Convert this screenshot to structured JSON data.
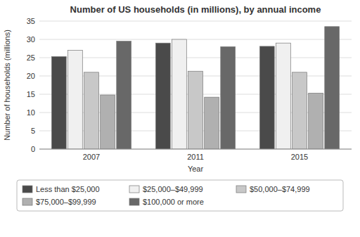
{
  "chart_data": {
    "type": "bar",
    "title": "Number of US households (in millions), by annual income",
    "xlabel": "Year",
    "ylabel": "Number of households (millions)",
    "categories": [
      "2007",
      "2011",
      "2015"
    ],
    "series": [
      {
        "name": "Less than $25,000",
        "color": "#4a4a4a",
        "values": [
          25.3,
          29.0,
          28.1
        ]
      },
      {
        "name": "$25,000–$49,999",
        "color": "#f0f0f0",
        "values": [
          27.0,
          30.0,
          29.0
        ]
      },
      {
        "name": "$50,000–$74,999",
        "color": "#c8c8c8",
        "values": [
          21.0,
          21.3,
          21.0
        ]
      },
      {
        "name": "$75,000–$99,999",
        "color": "#b0b0b0",
        "values": [
          14.8,
          14.2,
          15.3
        ]
      },
      {
        "name": "$100,000 or more",
        "color": "#686868",
        "values": [
          29.5,
          28.0,
          33.5
        ]
      }
    ],
    "ylim": [
      0,
      35
    ],
    "yticks": [
      0,
      5,
      10,
      15,
      20,
      25,
      30,
      35
    ],
    "grid": true,
    "legend": "bottom"
  }
}
